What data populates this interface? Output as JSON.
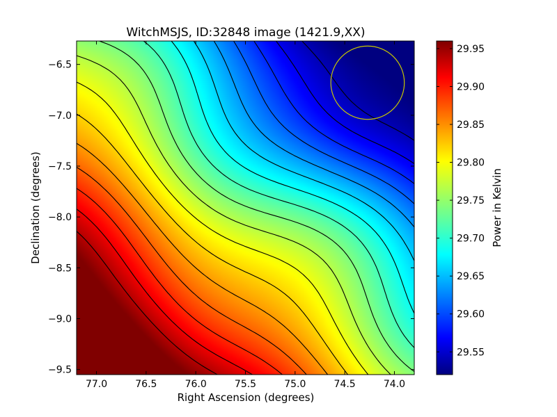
{
  "chart_data": {
    "type": "heatmap",
    "title": "WitchMSJS, ID:32848 image (1421.9,XX)",
    "xlabel": "Right Ascension (degrees)",
    "ylabel": "Declination (degrees)",
    "colorbar_label": "Power in Kelvin",
    "colormap": "jet",
    "xlim": [
      77.2,
      73.8
    ],
    "ylim": [
      -9.55,
      -6.27
    ],
    "x_ticks": [
      77.0,
      76.5,
      76.0,
      75.5,
      75.0,
      74.5,
      74.0
    ],
    "x_tick_labels": [
      "77.0",
      "76.5",
      "76.0",
      "75.5",
      "75.0",
      "74.5",
      "74.0"
    ],
    "y_ticks": [
      -6.5,
      -7.0,
      -7.5,
      -8.0,
      -8.5,
      -9.0,
      -9.5
    ],
    "y_tick_labels": [
      "−6.5",
      "−7.0",
      "−7.5",
      "−8.0",
      "−8.5",
      "−9.0",
      "−9.5"
    ],
    "color_range": [
      29.52,
      29.96
    ],
    "colorbar_ticks": [
      29.55,
      29.6,
      29.65,
      29.7,
      29.75,
      29.8,
      29.85,
      29.9,
      29.95
    ],
    "colorbar_tick_labels": [
      "29.55",
      "29.60",
      "29.65",
      "29.70",
      "29.75",
      "29.80",
      "29.85",
      "29.90",
      "29.95"
    ],
    "gradient": "power increases from high Dec / low RA (upper right, ~29.53 K) to low Dec / high RA (lower left, ~29.96 K)",
    "contour_count": 17,
    "circle": {
      "ra": 74.27,
      "dec": -6.68,
      "radius_deg": 0.37,
      "color": "#c8c800"
    }
  }
}
